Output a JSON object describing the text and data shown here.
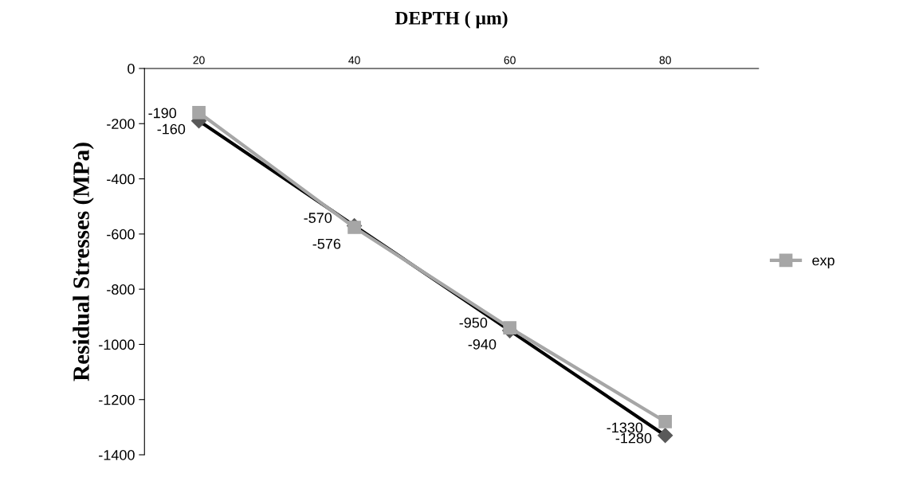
{
  "chart_data": {
    "type": "line",
    "title": "DEPTH ( µm)",
    "ylabel": "Residual Stresses (MPa)",
    "categories": [
      "20",
      "40",
      "60",
      "80"
    ],
    "series": [
      {
        "color": "#000000",
        "marker": "diamond",
        "values": [
          -190,
          -570,
          -950,
          -1330
        ]
      },
      {
        "name": "exp",
        "color": "#a6a6a6",
        "marker": "square",
        "values": [
          -160,
          -576,
          -940,
          -1280
        ]
      }
    ],
    "ylim": [
      -1400,
      0
    ],
    "yticks": [
      -1400,
      -1200,
      -1000,
      -800,
      -600,
      -400,
      -200,
      0
    ],
    "data_labels": true,
    "grid": false,
    "legend": "right"
  }
}
